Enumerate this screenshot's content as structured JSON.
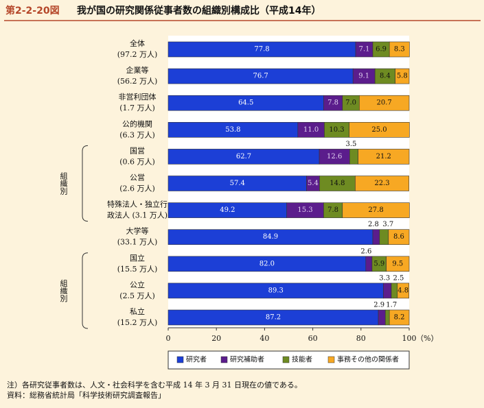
{
  "chart_data": {
    "type": "stacked-bar-horizontal",
    "figure_label": "第2-2-20図",
    "title": "我が国の研究関係従事者数の組織別構成比（平成14年）",
    "categories": [
      [
        "全体",
        "(97.2 万人)"
      ],
      [
        "企業等",
        "(56.2 万人)"
      ],
      [
        "非営利団体",
        "(1.7 万人)"
      ],
      [
        "公的機関",
        "(6.3 万人)"
      ],
      [
        "国営",
        "(0.6 万人)"
      ],
      [
        "公営",
        "(2.6 万人)"
      ],
      [
        "特殊法人・独立行",
        "政法人 (3.1 万人)"
      ],
      [
        "大学等",
        "(33.1 万人)"
      ],
      [
        "国立",
        "(15.5 万人)"
      ],
      [
        "公立",
        "(2.5 万人)"
      ],
      [
        "私立",
        "(15.2 万人)"
      ]
    ],
    "groups": [
      "組織別",
      "組織別"
    ],
    "series": [
      {
        "name": "研究者",
        "color": "#1c3fd6",
        "values": [
          77.8,
          76.7,
          64.5,
          53.8,
          62.7,
          57.4,
          49.2,
          84.9,
          82.0,
          89.3,
          87.2
        ],
        "value_labels": [
          "77.8",
          "76.7",
          "64.5",
          "53.8",
          "62.7",
          "57.4",
          "49.2",
          "84.9",
          "82.0",
          "89.3",
          "87.2"
        ]
      },
      {
        "name": "研究補助者",
        "color": "#5b1d8c",
        "values": [
          7.1,
          9.1,
          7.8,
          11.0,
          12.6,
          5.4,
          15.3,
          2.8,
          2.6,
          3.3,
          2.9
        ],
        "value_labels": [
          "7.1",
          "9.1",
          "7.8",
          "11.0",
          "12.6",
          "5.4",
          "15.3",
          "2.8",
          "2.6",
          "3.3",
          "2.9"
        ]
      },
      {
        "name": "技能者",
        "color": "#6e8b22",
        "values": [
          6.9,
          8.4,
          7.0,
          10.3,
          3.5,
          14.8,
          7.8,
          3.7,
          5.9,
          2.5,
          1.7
        ],
        "value_labels": [
          "6.9",
          "8.4",
          "7.0",
          "10.3",
          "3.5",
          "14.8",
          "7.8",
          "3.7",
          "5.9",
          "2.5",
          "1.7"
        ]
      },
      {
        "name": "事務その他の関係者",
        "color": "#f7a823",
        "values": [
          8.3,
          5.8,
          20.7,
          25.0,
          21.2,
          22.3,
          27.8,
          8.6,
          9.5,
          4.8,
          8.2
        ],
        "value_labels": [
          "8.3",
          "5.8",
          "20.7",
          "25.0",
          "21.2",
          "22.3",
          "27.8",
          "8.6",
          "9.5",
          "4.8",
          "8.2"
        ]
      }
    ],
    "xlim": [
      0,
      100
    ],
    "xticks": [
      0,
      20,
      40,
      60,
      80,
      100
    ],
    "xlabel": "（%）",
    "notes": [
      "注）各研究従事者数は、人文・社会科学を含む平成 14 年 3 月 31 日現在の値である。",
      "資料：総務省統計局「科学技術研究調査報告」"
    ]
  }
}
